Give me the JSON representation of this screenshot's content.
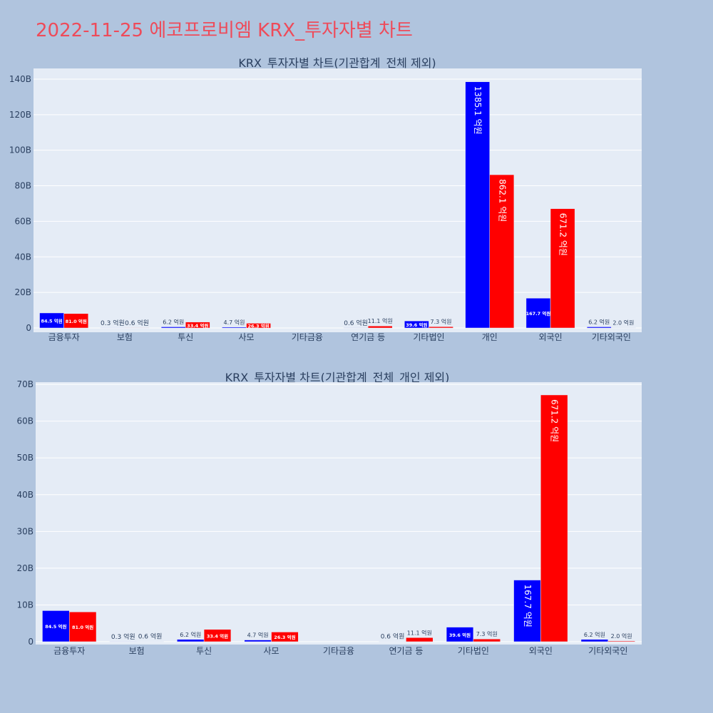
{
  "page": {
    "title": "2022-11-25 에코프로비엠 KRX_투자자별 차트"
  },
  "colors": {
    "background": "#b0c4de",
    "plot_bg": "#e5ecf6",
    "title": "#ee4b5a",
    "sell": "#0000ff",
    "buy": "#ff0000",
    "text": "#2a3f5f"
  },
  "chart_data": [
    {
      "type": "bar",
      "title": "KRX_투자자별 차트(기관합계_전체 제외)",
      "categories": [
        "금융투자",
        "보험",
        "투신",
        "사모",
        "기타금융",
        "연기금 등",
        "기타법인",
        "개인",
        "외국인",
        "기타외국인"
      ],
      "series": [
        {
          "color": "#0000ff",
          "values": [
            8.45,
            0.03,
            0.62,
            0.47,
            0,
            0.06,
            3.96,
            138.51,
            16.77,
            0.62
          ],
          "labels": [
            "84.5 억원",
            "0.3 억원",
            "6.2 억원",
            "4.7 억원",
            "",
            "0.6 억원",
            "39.6 억원",
            "1385.1 억원",
            "167.7 억원",
            "6.2 억원"
          ]
        },
        {
          "color": "#ff0000",
          "values": [
            8.1,
            0.06,
            3.34,
            2.63,
            0,
            1.11,
            0.73,
            86.21,
            67.12,
            0.2
          ],
          "labels": [
            "81.0 억원",
            "0.6 억원",
            "33.4 억원",
            "26.3 억원",
            "",
            "11.1 억원",
            "7.3 억원",
            "862.1 억원",
            "671.2 억원",
            "2.0 억원"
          ]
        }
      ],
      "ylim": [
        0,
        146
      ],
      "yticks": [
        0,
        20,
        40,
        60,
        80,
        100,
        120,
        140
      ],
      "ytick_labels": [
        "0",
        "20B",
        "40B",
        "60B",
        "80B",
        "100B",
        "120B",
        "140B"
      ],
      "grid": true,
      "legend": "none"
    },
    {
      "type": "bar",
      "title": "KRX_투자자별 차트(기관합계_전체_개인 제외)",
      "categories": [
        "금융투자",
        "보험",
        "투신",
        "사모",
        "기타금융",
        "연기금 등",
        "기타법인",
        "외국인",
        "기타외국인"
      ],
      "series": [
        {
          "color": "#0000ff",
          "values": [
            8.45,
            0.03,
            0.62,
            0.47,
            0,
            0.06,
            3.96,
            16.77,
            0.62
          ],
          "labels": [
            "84.5 억원",
            "0.3 억원",
            "6.2 억원",
            "4.7 억원",
            "",
            "0.6 억원",
            "39.6 억원",
            "167.7 억원",
            "6.2 억원"
          ]
        },
        {
          "color": "#ff0000",
          "values": [
            8.1,
            0.06,
            3.34,
            2.63,
            0,
            1.11,
            0.73,
            67.12,
            0.2
          ],
          "labels": [
            "81.0 억원",
            "0.6 억원",
            "33.4 억원",
            "26.3 억원",
            "",
            "11.1 억원",
            "7.3 억원",
            "671.2 억원",
            "2.0 억원"
          ]
        }
      ],
      "ylim": [
        0,
        70.6
      ],
      "yticks": [
        0,
        10,
        20,
        30,
        40,
        50,
        60,
        70
      ],
      "ytick_labels": [
        "0",
        "10B",
        "20B",
        "30B",
        "40B",
        "50B",
        "60B",
        "70B"
      ],
      "grid": true,
      "legend": "none"
    }
  ]
}
